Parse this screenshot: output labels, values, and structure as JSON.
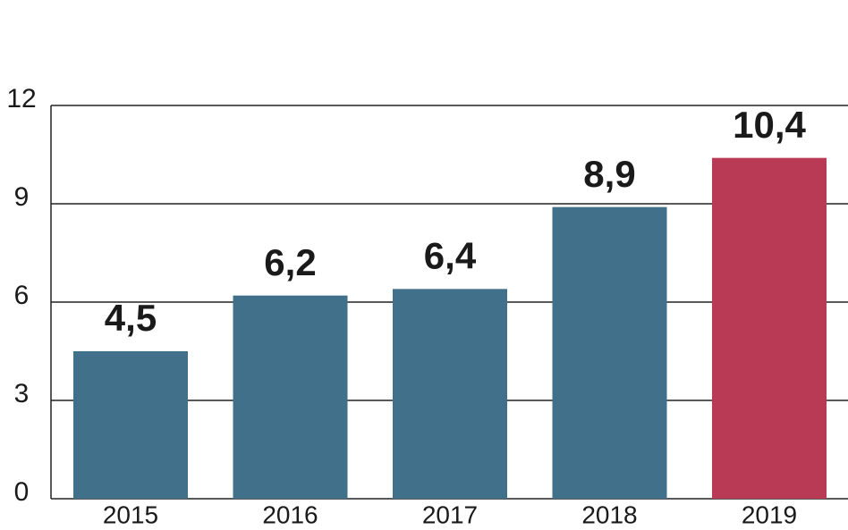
{
  "chart_data": {
    "type": "bar",
    "categories": [
      "2015",
      "2016",
      "2017",
      "2018",
      "2019"
    ],
    "values": [
      4.5,
      6.2,
      6.4,
      8.9,
      10.4
    ],
    "value_labels": [
      "4,5",
      "6,2",
      "6,4",
      "8,9",
      "10,4"
    ],
    "colors": [
      "#41708a",
      "#41708a",
      "#41708a",
      "#41708a",
      "#b93a55"
    ],
    "ylim": [
      0,
      12
    ],
    "yticks": [
      0,
      3,
      6,
      9,
      12
    ],
    "grid": true
  }
}
